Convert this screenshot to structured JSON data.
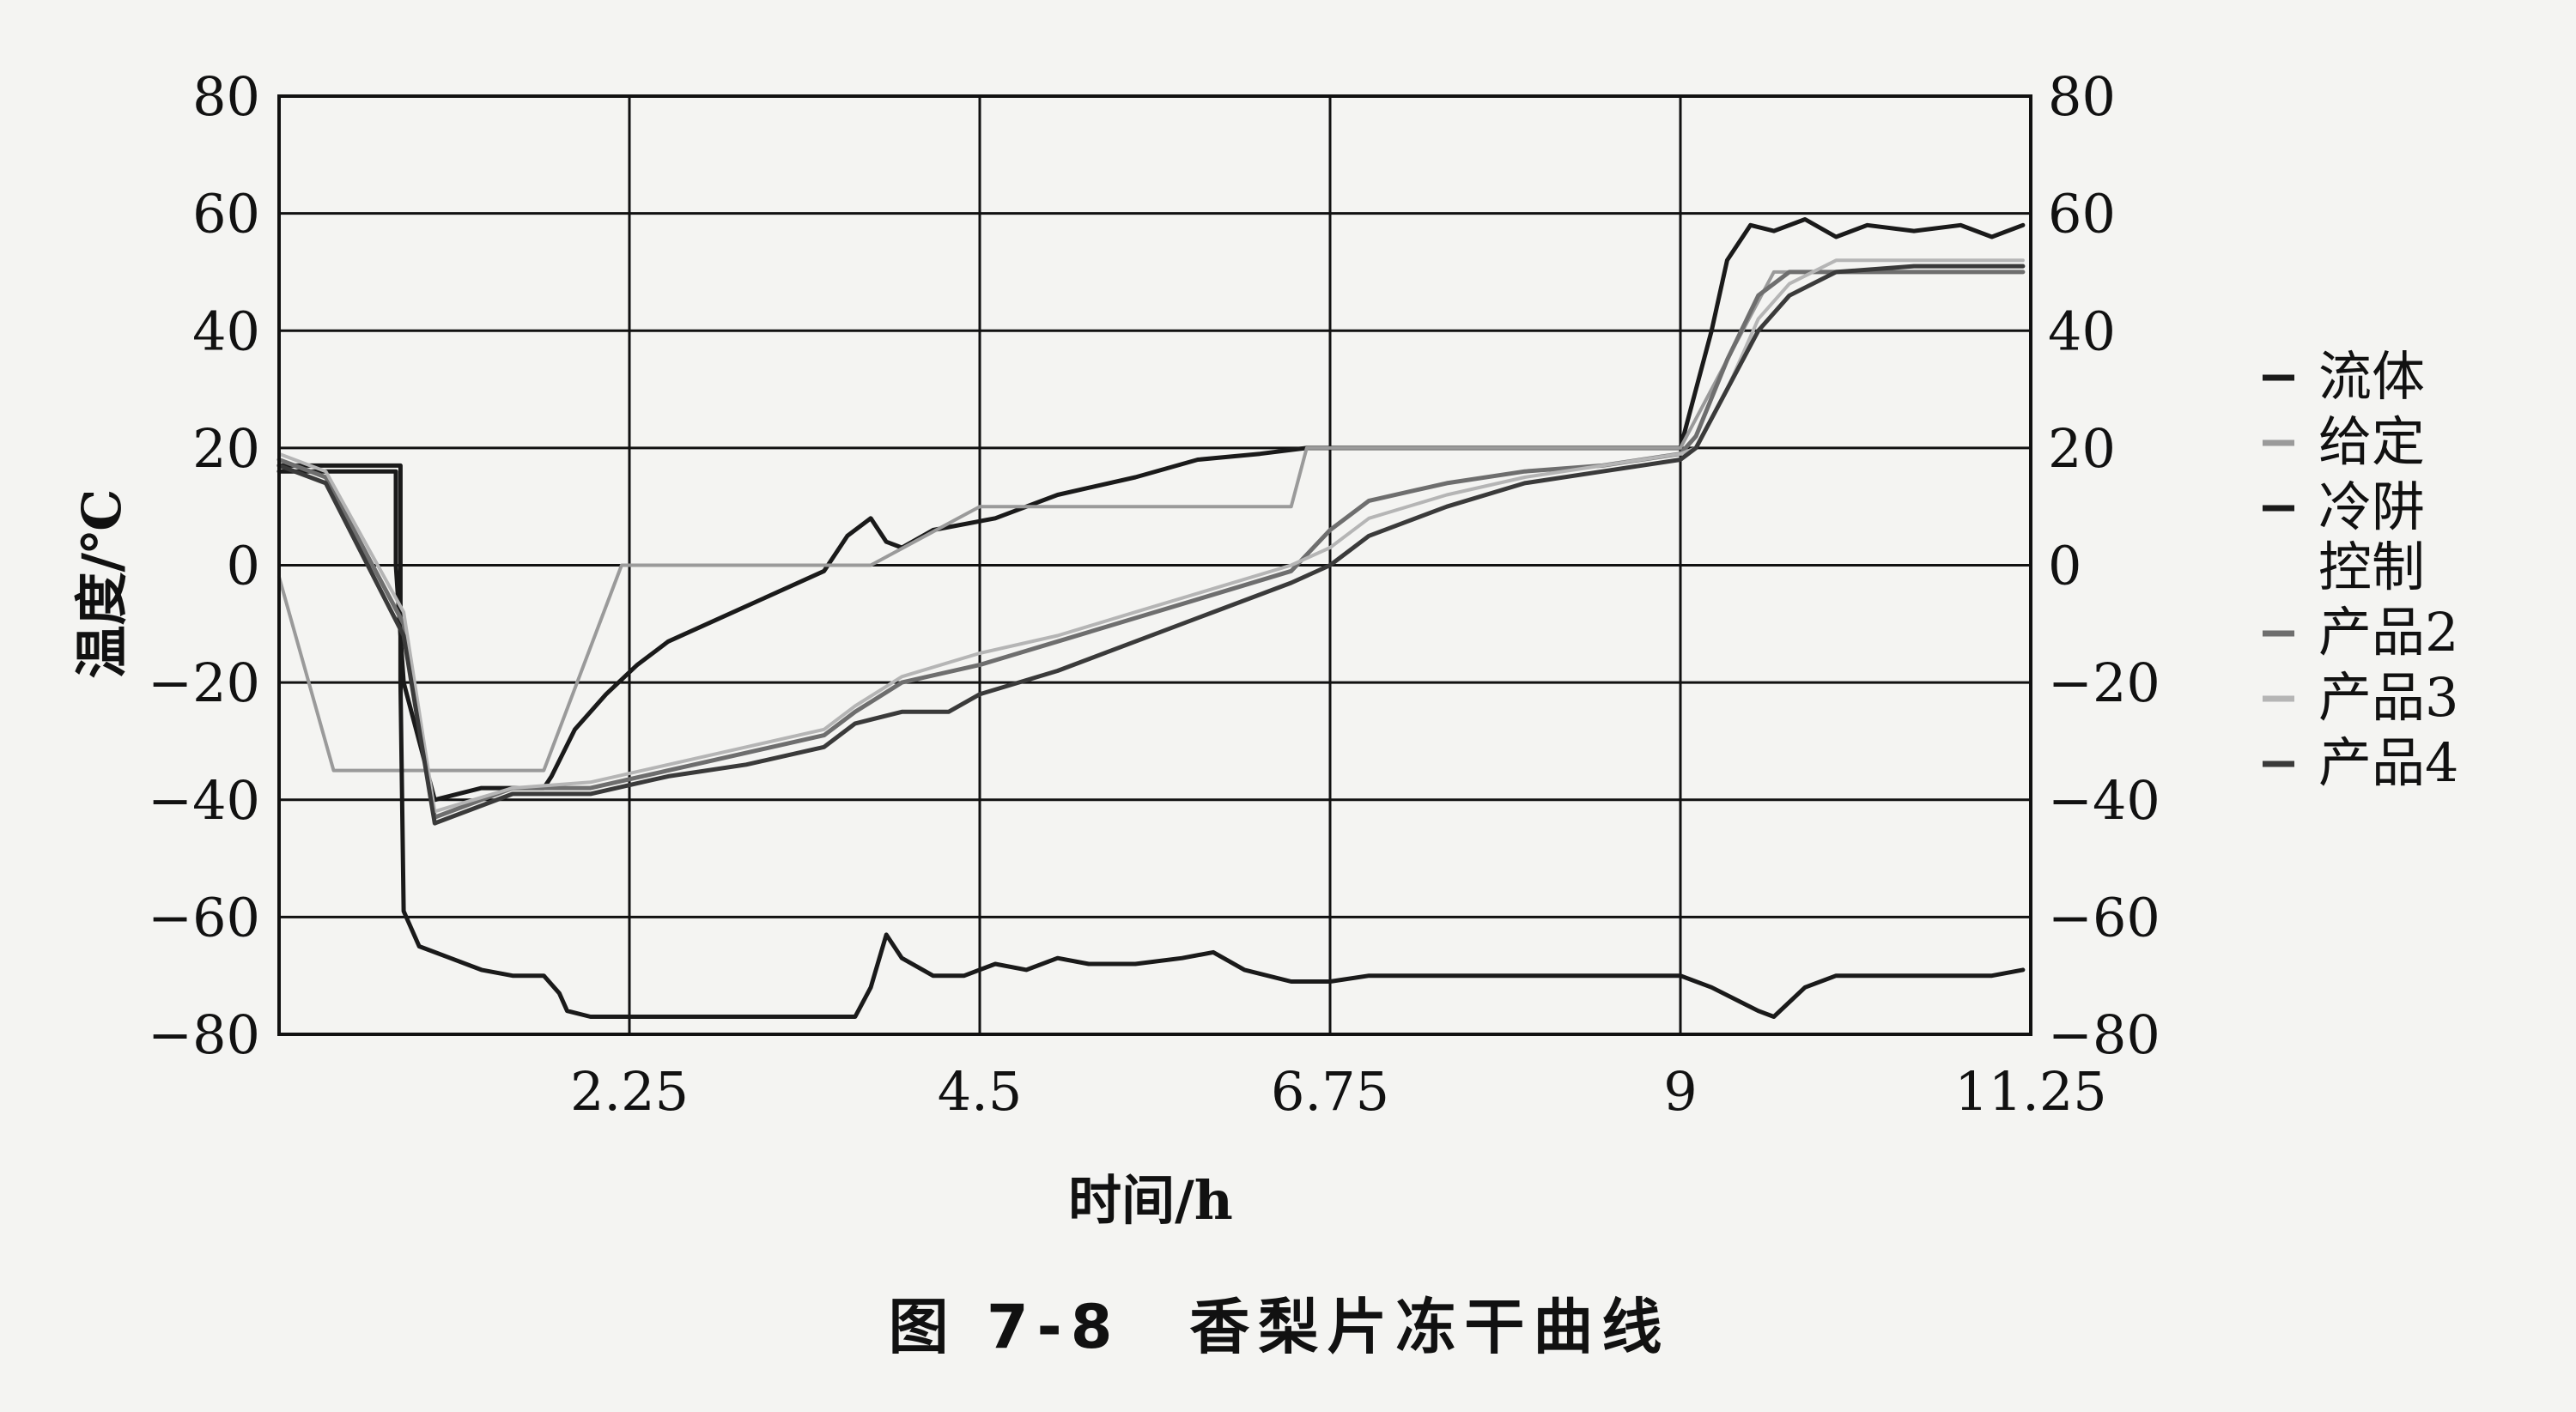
{
  "figure": {
    "caption": "图 7-8　香梨片冻干曲线"
  },
  "colors": {
    "grid": "#111111",
    "frame": "#111111",
    "background": "#f4f4f2"
  },
  "chart_data": {
    "type": "line",
    "title": "",
    "xlabel": "时间/h",
    "ylabel": "温度/℃",
    "xlim": [
      0,
      11.25
    ],
    "ylim": [
      -80,
      80
    ],
    "x_ticks": [
      2.25,
      4.5,
      6.75,
      9,
      11.25
    ],
    "x_tick_labels": [
      "2.25",
      "4.5",
      "6.75",
      "9",
      "11.25"
    ],
    "y_ticks": [
      -80,
      -60,
      -40,
      -20,
      0,
      20,
      40,
      60,
      80
    ],
    "y_tick_labels": [
      "−80",
      "−60",
      "−40",
      "−20",
      "0",
      "20",
      "40",
      "60",
      "80"
    ],
    "right_axis_mirrors_left": true,
    "grid": true,
    "legend_position": "right",
    "series": [
      {
        "name": "流体",
        "color": "#1a1a1a",
        "x": [
          0,
          0.75,
          0.75,
          0.8,
          1.0,
          1.3,
          1.7,
          1.75,
          1.9,
          2.1,
          2.3,
          2.5,
          3.0,
          3.5,
          3.65,
          3.8,
          3.9,
          4.0,
          4.2,
          4.6,
          5.0,
          5.5,
          5.9,
          6.3,
          6.6,
          7.0,
          7.5,
          8.0,
          8.6,
          9.0,
          9.1,
          9.2,
          9.3,
          9.45,
          9.6,
          9.8,
          10.0,
          10.2,
          10.5,
          10.8,
          11.0,
          11.2
        ],
        "values": [
          16,
          16,
          0,
          -20,
          -40,
          -38,
          -38,
          -36,
          -28,
          -22,
          -17,
          -13,
          -7,
          -1,
          5,
          8,
          4,
          3,
          6,
          8,
          12,
          15,
          18,
          19,
          20,
          20,
          20,
          20,
          20,
          20,
          30,
          40,
          52,
          58,
          57,
          59,
          56,
          58,
          57,
          58,
          56,
          58
        ]
      },
      {
        "name": "给定",
        "color": "#9a9a9a",
        "x": [
          0,
          0.35,
          0.35,
          0.8,
          1.7,
          2.2,
          3.8,
          3.8,
          4.5,
          6.5,
          6.6,
          9.0,
          9.0,
          9.6,
          11.2
        ],
        "values": [
          -2,
          -35,
          -35,
          -35,
          -35,
          0,
          0,
          0,
          10,
          10,
          20,
          20,
          20,
          50,
          50
        ]
      },
      {
        "name": "冷阱",
        "color": "#1a1a1a",
        "x": [
          0,
          0.78,
          0.78,
          0.8,
          0.9,
          1.1,
          1.3,
          1.5,
          1.7,
          1.8,
          1.85,
          2.0,
          2.25,
          2.5,
          3.0,
          3.5,
          3.7,
          3.8,
          3.9,
          4.0,
          4.2,
          4.4,
          4.6,
          4.8,
          5.0,
          5.2,
          5.5,
          5.8,
          6.0,
          6.2,
          6.5,
          6.75,
          7.0,
          7.5,
          8.0,
          8.5,
          9.0,
          9.2,
          9.5,
          9.6,
          9.8,
          10.0,
          10.5,
          11.0,
          11.2
        ],
        "values": [
          17,
          17,
          -20,
          -59,
          -65,
          -67,
          -69,
          -70,
          -70,
          -73,
          -76,
          -77,
          -77,
          -77,
          -77,
          -77,
          -77,
          -72,
          -63,
          -67,
          -70,
          -70,
          -68,
          -69,
          -67,
          -68,
          -68,
          -67,
          -66,
          -69,
          -71,
          -71,
          -70,
          -70,
          -70,
          -70,
          -70,
          -72,
          -76,
          -77,
          -72,
          -70,
          -70,
          -70,
          -69
        ]
      },
      {
        "name": "产品2",
        "color": "#6e6e6e",
        "x": [
          0,
          0.3,
          0.8,
          1.0,
          1.5,
          2.0,
          2.5,
          3.0,
          3.5,
          3.7,
          4.0,
          4.5,
          5.0,
          5.5,
          6.0,
          6.5,
          6.75,
          7.0,
          7.5,
          8.0,
          8.5,
          9.0,
          9.1,
          9.3,
          9.5,
          9.7,
          10.0,
          10.5,
          11.0,
          11.2
        ],
        "values": [
          18,
          15,
          -10,
          -43,
          -38,
          -38,
          -35,
          -32,
          -29,
          -25,
          -20,
          -17,
          -13,
          -9,
          -5,
          -1,
          6,
          11,
          14,
          16,
          17,
          19,
          22,
          35,
          46,
          50,
          50,
          50,
          50,
          50
        ]
      },
      {
        "name": "产品3",
        "color": "#b5b5b5",
        "x": [
          0,
          0.3,
          0.8,
          1.0,
          1.5,
          2.0,
          2.5,
          3.0,
          3.5,
          3.7,
          4.0,
          4.5,
          5.0,
          5.5,
          6.0,
          6.5,
          6.75,
          7.0,
          7.5,
          8.0,
          8.5,
          9.0,
          9.1,
          9.3,
          9.5,
          9.7,
          10.0,
          10.5,
          11.0,
          11.2
        ],
        "values": [
          19,
          16,
          -8,
          -42,
          -38,
          -37,
          -34,
          -31,
          -28,
          -24,
          -19,
          -15,
          -12,
          -8,
          -4,
          0,
          3,
          8,
          12,
          15,
          17,
          19,
          20,
          30,
          42,
          48,
          52,
          52,
          52,
          52
        ]
      },
      {
        "name": "产品4",
        "color": "#3a3a3a",
        "x": [
          0,
          0.3,
          0.8,
          1.0,
          1.5,
          2.0,
          2.5,
          3.0,
          3.5,
          3.7,
          4.0,
          4.3,
          4.5,
          5.0,
          5.5,
          6.0,
          6.5,
          6.75,
          7.0,
          7.5,
          8.0,
          8.5,
          9.0,
          9.1,
          9.3,
          9.5,
          9.7,
          10.0,
          10.5,
          11.0,
          11.2
        ],
        "values": [
          17,
          14,
          -12,
          -44,
          -39,
          -39,
          -36,
          -34,
          -31,
          -27,
          -25,
          -25,
          -22,
          -18,
          -13,
          -8,
          -3,
          0,
          5,
          10,
          14,
          16,
          18,
          20,
          30,
          40,
          46,
          50,
          51,
          51,
          51
        ]
      }
    ],
    "legend_entries": [
      {
        "label": "流体",
        "color": "#1a1a1a"
      },
      {
        "label": "给定",
        "color": "#9a9a9a"
      },
      {
        "label": "冷阱\n控制",
        "color": "#1a1a1a"
      },
      {
        "label": "产品2",
        "color": "#6e6e6e"
      },
      {
        "label": "产品3",
        "color": "#b5b5b5"
      },
      {
        "label": "产品4",
        "color": "#3a3a3a"
      }
    ]
  }
}
